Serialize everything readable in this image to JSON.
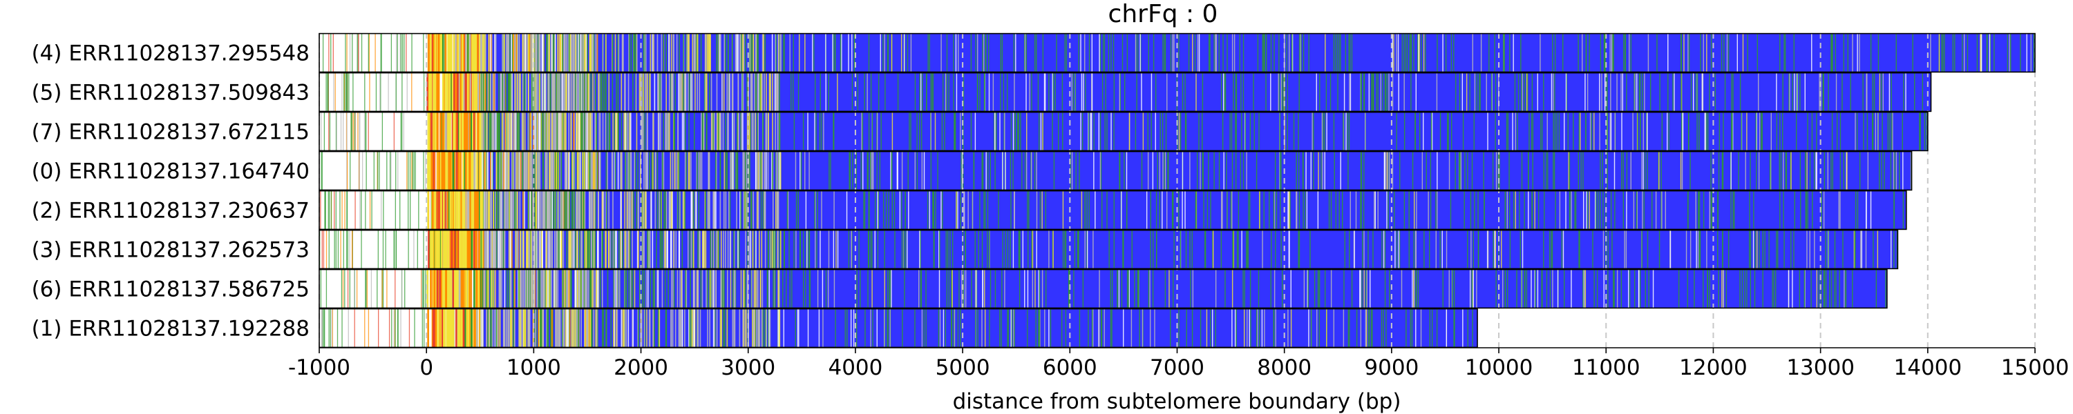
{
  "chart_data": {
    "type": "heatmap",
    "title": "chrFq : 0",
    "xlabel": "distance from subtelomere boundary (bp)",
    "xlim": [
      -1000,
      15000
    ],
    "x_ticks": [
      -1000,
      0,
      1000,
      2000,
      3000,
      4000,
      5000,
      6000,
      7000,
      8000,
      9000,
      10000,
      11000,
      12000,
      13000,
      14000,
      15000
    ],
    "x_tick_labels": [
      "-1000",
      "0",
      "1000",
      "2000",
      "3000",
      "4000",
      "5000",
      "6000",
      "7000",
      "8000",
      "9000",
      "10000",
      "11000",
      "12000",
      "13000",
      "14000",
      "15000"
    ],
    "grid": "vertical dashed at x ticks",
    "colors": {
      "telomere_repeat": "#3333ff",
      "variant_green": "#2e9a2e",
      "variant_yellow": "#f2e33a",
      "variant_orange": "#ff8c00",
      "variant_red": "#e8412a",
      "variant_gray": "#b8b8b8",
      "variant_white": "#ffffff",
      "grid": "#c8c8c8",
      "frame": "#000000"
    },
    "reads": [
      {
        "label": "(4) ERR11028137.295548",
        "start": -1000,
        "end": 15000,
        "seed": 11
      },
      {
        "label": "(5) ERR11028137.509843",
        "start": -1000,
        "end": 14030,
        "seed": 23
      },
      {
        "label": "(7) ERR11028137.672115",
        "start": -1000,
        "end": 14000,
        "seed": 37
      },
      {
        "label": "(0) ERR11028137.164740",
        "start": -1000,
        "end": 13850,
        "seed": 41
      },
      {
        "label": "(2) ERR11028137.230637",
        "start": -1000,
        "end": 13800,
        "seed": 53
      },
      {
        "label": "(3) ERR11028137.262573",
        "start": -1000,
        "end": 13720,
        "seed": 67
      },
      {
        "label": "(6) ERR11028137.586725",
        "start": -1000,
        "end": 13620,
        "seed": 71
      },
      {
        "label": "(1) ERR11028137.192288",
        "start": -1000,
        "end": 9800,
        "seed": 83
      }
    ],
    "regions": [
      {
        "from": -1000,
        "to": 0,
        "kind": "sparse_lines"
      },
      {
        "from": 0,
        "to": 500,
        "kind": "yellow_orange_dense"
      },
      {
        "from": 500,
        "to": 1600,
        "kind": "mixed_dense"
      },
      {
        "from": 1600,
        "to": 3300,
        "kind": "mixed_blue"
      },
      {
        "from": 3300,
        "to": 15000,
        "kind": "blue_with_green"
      }
    ]
  }
}
